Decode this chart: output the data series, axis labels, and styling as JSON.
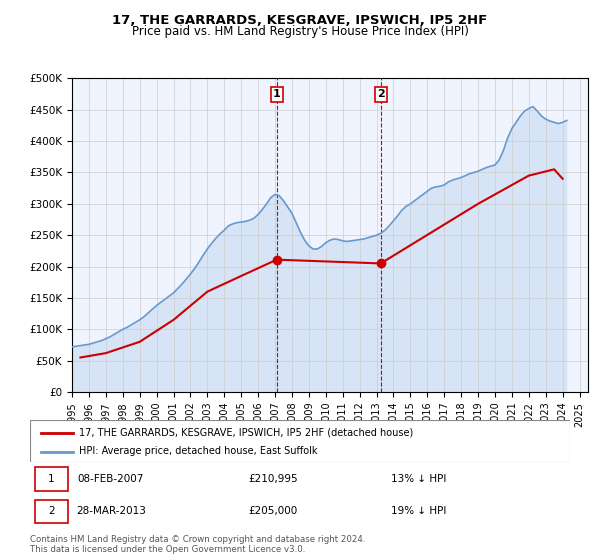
{
  "title": "17, THE GARRARDS, KESGRAVE, IPSWICH, IP5 2HF",
  "subtitle": "Price paid vs. HM Land Registry's House Price Index (HPI)",
  "xlabel": "",
  "ylabel": "",
  "ylim": [
    0,
    500000
  ],
  "yticks": [
    0,
    50000,
    100000,
    150000,
    200000,
    250000,
    300000,
    350000,
    400000,
    450000,
    500000
  ],
  "ytick_labels": [
    "£0",
    "£50K",
    "£100K",
    "£150K",
    "£200K",
    "£250K",
    "£300K",
    "£350K",
    "£400K",
    "£450K",
    "£500K"
  ],
  "xlim_start": 1995.0,
  "xlim_end": 2025.5,
  "marker1_x": 2007.1,
  "marker2_x": 2013.25,
  "marker1_label": "1",
  "marker2_label": "2",
  "marker1_y": 210995,
  "marker2_y": 205000,
  "hpi_color": "#a8c8e8",
  "hpi_line_color": "#6699cc",
  "price_color": "#cc0000",
  "legend_property": "17, THE GARRARDS, KESGRAVE, IPSWICH, IP5 2HF (detached house)",
  "legend_hpi": "HPI: Average price, detached house, East Suffolk",
  "table_row1": [
    "1",
    "08-FEB-2007",
    "£210,995",
    "13% ↓ HPI"
  ],
  "table_row2": [
    "2",
    "28-MAR-2013",
    "£205,000",
    "19% ↓ HPI"
  ],
  "footer": "Contains HM Land Registry data © Crown copyright and database right 2024.\nThis data is licensed under the Open Government Licence v3.0.",
  "background_color": "#ffffff",
  "plot_bg_color": "#ffffff",
  "hpi_data_x": [
    1995,
    1995.25,
    1995.5,
    1995.75,
    1996,
    1996.25,
    1996.5,
    1996.75,
    1997,
    1997.25,
    1997.5,
    1997.75,
    1998,
    1998.25,
    1998.5,
    1998.75,
    1999,
    1999.25,
    1999.5,
    1999.75,
    2000,
    2000.25,
    2000.5,
    2000.75,
    2001,
    2001.25,
    2001.5,
    2001.75,
    2002,
    2002.25,
    2002.5,
    2002.75,
    2003,
    2003.25,
    2003.5,
    2003.75,
    2004,
    2004.25,
    2004.5,
    2004.75,
    2005,
    2005.25,
    2005.5,
    2005.75,
    2006,
    2006.25,
    2006.5,
    2006.75,
    2007,
    2007.25,
    2007.5,
    2007.75,
    2008,
    2008.25,
    2008.5,
    2008.75,
    2009,
    2009.25,
    2009.5,
    2009.75,
    2010,
    2010.25,
    2010.5,
    2010.75,
    2011,
    2011.25,
    2011.5,
    2011.75,
    2012,
    2012.25,
    2012.5,
    2012.75,
    2013,
    2013.25,
    2013.5,
    2013.75,
    2014,
    2014.25,
    2014.5,
    2014.75,
    2015,
    2015.25,
    2015.5,
    2015.75,
    2016,
    2016.25,
    2016.5,
    2016.75,
    2017,
    2017.25,
    2017.5,
    2017.75,
    2018,
    2018.25,
    2018.5,
    2018.75,
    2019,
    2019.25,
    2019.5,
    2019.75,
    2020,
    2020.25,
    2020.5,
    2020.75,
    2021,
    2021.25,
    2021.5,
    2021.75,
    2022,
    2022.25,
    2022.5,
    2022.75,
    2023,
    2023.25,
    2023.5,
    2023.75,
    2024,
    2024.25
  ],
  "hpi_data_y": [
    72000,
    73000,
    74000,
    75000,
    76000,
    78000,
    80000,
    82000,
    85000,
    88000,
    92000,
    96000,
    100000,
    103000,
    107000,
    111000,
    115000,
    120000,
    126000,
    132000,
    138000,
    143000,
    148000,
    153000,
    158000,
    165000,
    172000,
    180000,
    188000,
    197000,
    207000,
    218000,
    228000,
    237000,
    245000,
    252000,
    258000,
    265000,
    268000,
    270000,
    271000,
    272000,
    274000,
    277000,
    283000,
    291000,
    300000,
    310000,
    315000,
    313000,
    305000,
    295000,
    285000,
    270000,
    255000,
    242000,
    233000,
    228000,
    228000,
    232000,
    238000,
    242000,
    244000,
    243000,
    241000,
    240000,
    241000,
    242000,
    243000,
    244000,
    246000,
    248000,
    250000,
    253000,
    258000,
    265000,
    273000,
    281000,
    290000,
    296000,
    300000,
    305000,
    310000,
    315000,
    320000,
    325000,
    327000,
    328000,
    330000,
    335000,
    338000,
    340000,
    342000,
    345000,
    348000,
    350000,
    352000,
    355000,
    358000,
    360000,
    362000,
    370000,
    385000,
    405000,
    420000,
    430000,
    440000,
    448000,
    452000,
    455000,
    448000,
    440000,
    435000,
    432000,
    430000,
    428000,
    430000,
    433000
  ],
  "price_data_x": [
    1995.5,
    1997.0,
    1999.0,
    2001.0,
    2003.0,
    2005.0,
    2007.1,
    2013.25,
    2019.0,
    2022.0,
    2023.5,
    2024.0
  ],
  "price_data_y": [
    55000,
    62000,
    80000,
    115000,
    160000,
    185000,
    210995,
    205000,
    300000,
    345000,
    355000,
    340000
  ],
  "xtick_years": [
    1995,
    1996,
    1997,
    1998,
    1999,
    2000,
    2001,
    2002,
    2003,
    2004,
    2005,
    2006,
    2007,
    2008,
    2009,
    2010,
    2011,
    2012,
    2013,
    2014,
    2015,
    2016,
    2017,
    2018,
    2019,
    2020,
    2021,
    2022,
    2023,
    2024,
    2025
  ]
}
